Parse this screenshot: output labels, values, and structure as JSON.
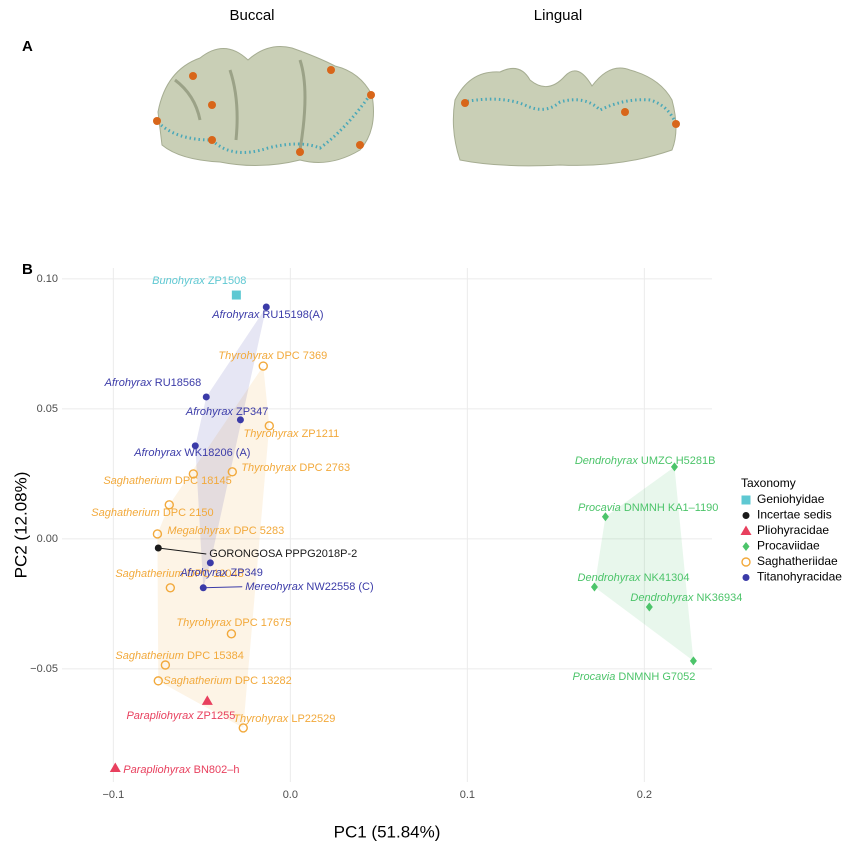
{
  "panel_a": {
    "label": "A",
    "views": [
      "Buccal",
      "Lingual"
    ]
  },
  "chart_data": {
    "type": "scatter",
    "panel_label": "B",
    "x_label": "PC1 (51.84%)",
    "y_label": "PC2 (12.08%)",
    "xlim": [
      -0.129,
      0.2382
    ],
    "ylim": [
      -0.0935,
      0.1042
    ],
    "xticks": [
      {
        "value": -0.1,
        "label": "−0.1"
      },
      {
        "value": 0,
        "label": "0.0"
      },
      {
        "value": 0.1,
        "label": "0.1"
      },
      {
        "value": 0.2,
        "label": "0.2"
      }
    ],
    "yticks": [
      {
        "value": 0.1,
        "label": "0.10"
      },
      {
        "value": 0.05,
        "label": "0.05"
      },
      {
        "value": 0,
        "label": "0.00"
      },
      {
        "value": -0.05,
        "label": "−0.05"
      }
    ],
    "grid": true,
    "legend_title": "Taxonomy",
    "legend_position": "right",
    "series": [
      {
        "name": "Geniohyidae",
        "color": "#5ec8d2",
        "shape": "square",
        "filled": true,
        "x": [
          -0.0305
        ],
        "y": [
          0.0938
        ],
        "labels": [
          {
            "genus": "Bunohyrax",
            "specimen": "ZP1508"
          }
        ]
      },
      {
        "name": "Incertae sedis",
        "color": "#1a1a1a",
        "shape": "circle",
        "filled": true,
        "x": [
          -0.0746
        ],
        "y": [
          -0.0035
        ],
        "labels": [
          {
            "specimen": "GORONGOSA PPPG2018P-2"
          }
        ]
      },
      {
        "name": "Pliohyracidae",
        "color": "#e8405e",
        "shape": "triangle",
        "filled": true,
        "x": [
          -0.0469,
          -0.0989
        ],
        "y": [
          -0.0623,
          -0.0881
        ],
        "labels": [
          {
            "genus": "Parapliohyrax",
            "specimen": "ZP1255"
          },
          {
            "genus": "Parapliohyrax",
            "specimen": "BN802–h"
          }
        ]
      },
      {
        "name": "Procaviidae",
        "color": "#4cc46a",
        "shape": "diamond",
        "filled": true,
        "x": [
          0.217,
          0.178,
          0.1718,
          0.2028,
          0.2277
        ],
        "y": [
          0.0277,
          0.0085,
          -0.0185,
          -0.0262,
          -0.0469
        ],
        "labels": [
          {
            "genus": "Dendrohyrax",
            "specimen": "UMZC H5281B"
          },
          {
            "genus": "Procavia",
            "specimen": "DNMNH KA1–1190"
          },
          {
            "genus": "Dendrohyrax",
            "specimen": "NK41304"
          },
          {
            "genus": "Dendrohyrax",
            "specimen": "NK36934"
          },
          {
            "genus": "Procavia",
            "specimen": "DNMNH G7052"
          }
        ]
      },
      {
        "name": "Saghatheriidae",
        "color": "#f2a93b",
        "shape": "circle",
        "filled": false,
        "x": [
          -0.0153,
          -0.0119,
          -0.0328,
          -0.0548,
          -0.0684,
          -0.0751,
          -0.0678,
          -0.0333,
          -0.0706,
          -0.0746,
          -0.0266
        ],
        "y": [
          0.0665,
          0.0435,
          0.0258,
          0.025,
          0.0131,
          0.0019,
          -0.0188,
          -0.0365,
          -0.0485,
          -0.0546,
          -0.0727
        ],
        "labels": [
          {
            "genus": "Thyrohyrax",
            "specimen": "DPC 7369"
          },
          {
            "genus": "Thyrohyrax",
            "specimen": "ZP1211"
          },
          {
            "genus": "Thyrohyrax",
            "specimen": "DPC 2763"
          },
          {
            "genus": "Saghatherium",
            "specimen": "DPC 18145"
          },
          {
            "genus": "Saghatherium",
            "specimen": "DPC 2150"
          },
          {
            "genus": "Megalohyrax",
            "specimen": "DPC 5283"
          },
          {
            "genus": "Saghatherium",
            "specimen": "DPC 12048"
          },
          {
            "genus": "Thyrohyrax",
            "specimen": "DPC 17675"
          },
          {
            "genus": "Saghatherium",
            "specimen": "DPC 15384"
          },
          {
            "genus": "Saghatherium",
            "specimen": "DPC 13282"
          },
          {
            "genus": "Thyrohyrax",
            "specimen": "LP22529"
          }
        ]
      },
      {
        "name": "Titanohyracidae",
        "color": "#3b3ba8",
        "shape": "circle",
        "filled": true,
        "x": [
          -0.0136,
          -0.0475,
          -0.0282,
          -0.0537,
          -0.0452,
          -0.0492
        ],
        "y": [
          0.0892,
          0.0546,
          0.0458,
          0.0358,
          -0.0092,
          -0.0188
        ],
        "labels": [
          {
            "genus": "Afrohyrax",
            "specimen": "RU15198(A)"
          },
          {
            "genus": "Afrohyrax",
            "specimen": "RU18568"
          },
          {
            "genus": "Afrohyrax",
            "specimen": "ZP347"
          },
          {
            "genus": "Afrohyrax",
            "specimen": "WK18206 (A)"
          },
          {
            "genus": "Afrohyrax",
            "specimen": "ZP349"
          },
          {
            "genus": "Mereohyrax",
            "specimen": "NW22558 (C)"
          }
        ]
      }
    ]
  }
}
